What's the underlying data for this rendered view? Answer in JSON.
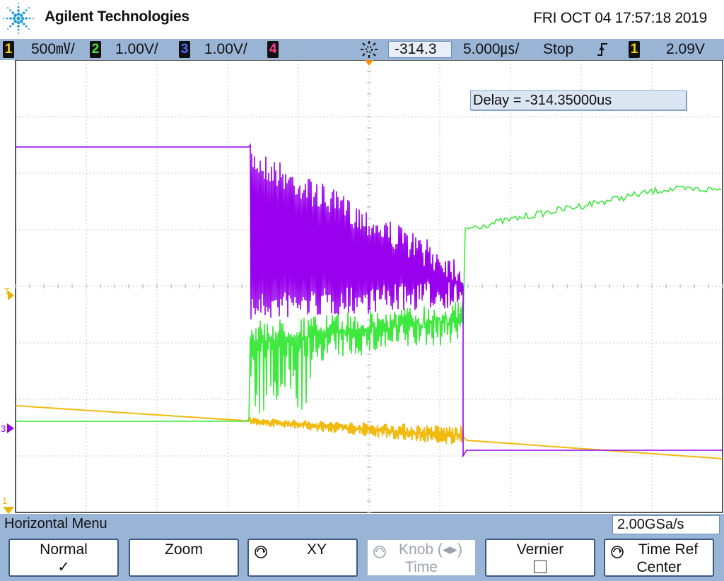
{
  "header": {
    "brand": "Agilent Technologies",
    "datetime": "FRI OCT 04 17:57:18 2019"
  },
  "status": {
    "ch1": {
      "number": "1",
      "scale": "500㎷/",
      "color": "#f5d400"
    },
    "ch2": {
      "number": "2",
      "scale": "1.00V/",
      "color": "#4de34d"
    },
    "ch3": {
      "number": "3",
      "scale": "1.00V/",
      "color": "#4a6cff"
    },
    "ch4": {
      "number": "4",
      "color": "#ff3b8a"
    },
    "delay": "-314.3㎲",
    "timebase": "5.000㎲/",
    "run_state": "Stop",
    "trigger_slope_icon": "rising-edge-icon",
    "trigger_source": "1",
    "trigger_level": "2.09V"
  },
  "display": {
    "delay_readout": "Delay = -314.35000us",
    "markers": {
      "trigger_level": "T",
      "ch3_ground": "3",
      "ch1_ground": "1"
    },
    "traces": {
      "ch1_color": "#f2b90f",
      "ch2_color": "#3fe83f",
      "ch3_color": "#9900ee"
    }
  },
  "menu": {
    "title": "Horizontal Menu",
    "sample_rate": "2.00GSa/s",
    "softkeys": [
      {
        "line1": "Normal",
        "line2": "✓",
        "state": "checked"
      },
      {
        "line1": "Zoom",
        "line2": ""
      },
      {
        "line1": "XY",
        "line2": "",
        "icon": "knob-icon"
      },
      {
        "line1": "Knob (◂▸)",
        "line2": "Time",
        "icon": "knob-icon",
        "state": "disabled"
      },
      {
        "line1": "Vernier",
        "line2": "",
        "state": "unchecked"
      },
      {
        "line1": "Time Ref",
        "line2": "Center",
        "icon": "knob-icon"
      }
    ]
  }
}
